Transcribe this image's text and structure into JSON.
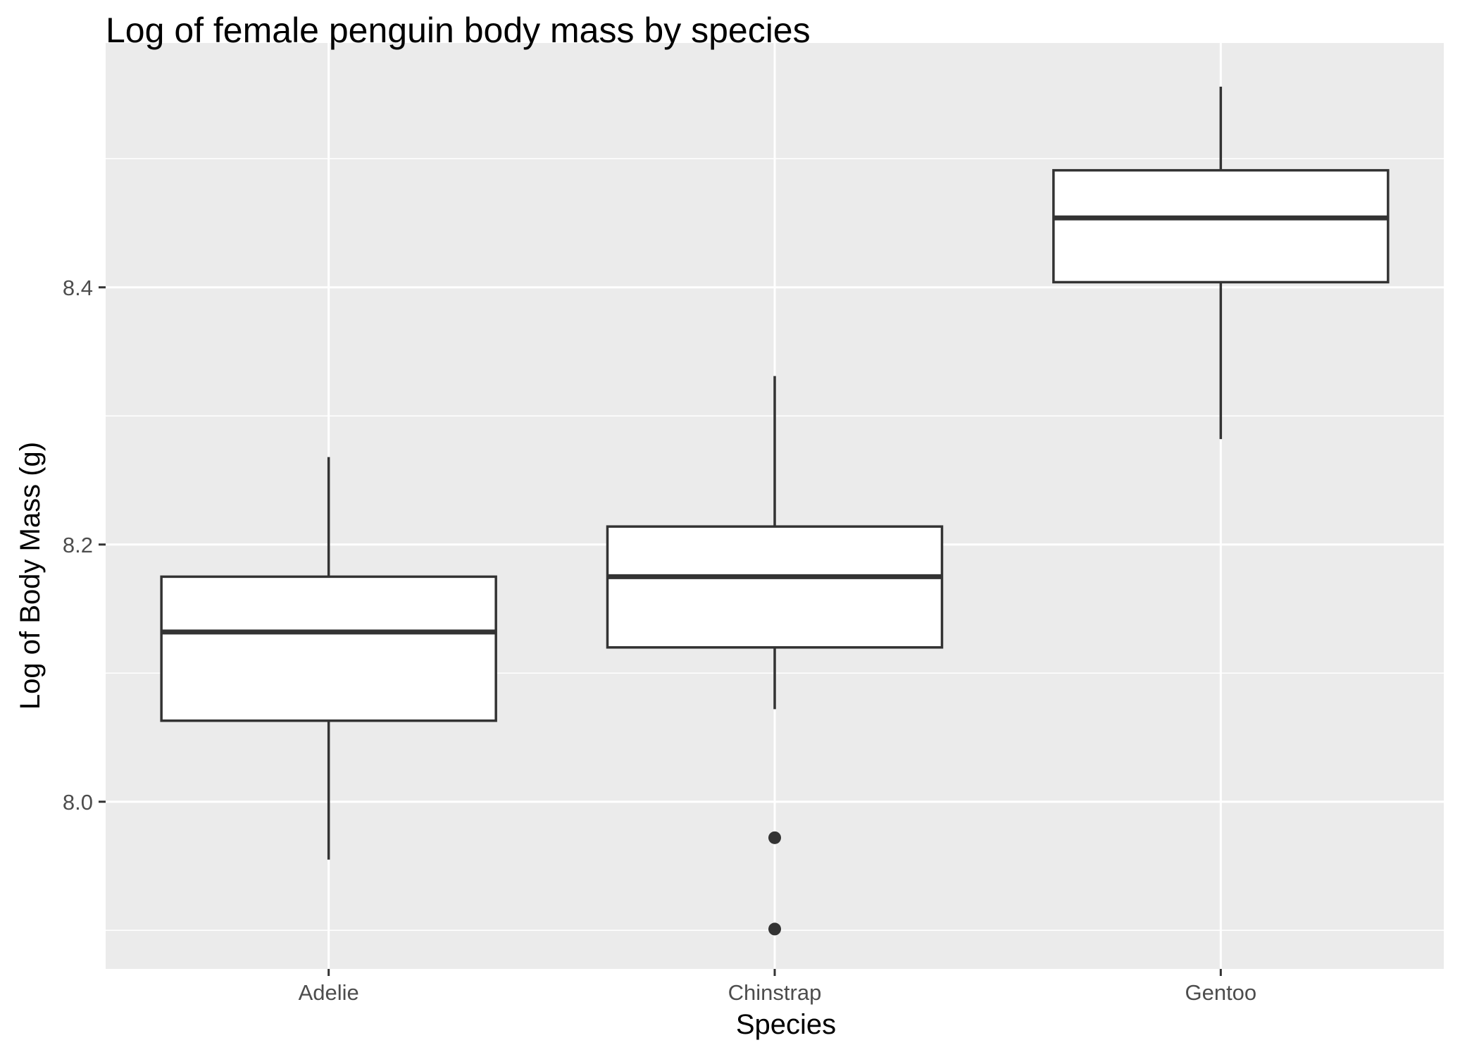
{
  "chart_data": {
    "type": "boxplot",
    "title": "Log of female penguin body mass by species",
    "xlabel": "Species",
    "ylabel": "Log of Body Mass (g)",
    "categories": [
      "Adelie",
      "Chinstrap",
      "Gentoo"
    ],
    "ylim": [
      7.87,
      8.59
    ],
    "y_ticks": [
      8.0,
      8.2,
      8.4
    ],
    "y_tick_labels": [
      "8.0",
      "8.2",
      "8.4"
    ],
    "y_minor_ticks": [
      7.9,
      8.1,
      8.3,
      8.5
    ],
    "grid": true,
    "boxes": [
      {
        "category": "Adelie",
        "whisker_low": 7.955,
        "q1": 8.063,
        "median": 8.132,
        "q3": 8.175,
        "whisker_high": 8.268,
        "outliers": []
      },
      {
        "category": "Chinstrap",
        "whisker_low": 8.072,
        "q1": 8.12,
        "median": 8.175,
        "q3": 8.214,
        "whisker_high": 8.331,
        "outliers": [
          7.972,
          7.901
        ]
      },
      {
        "category": "Gentoo",
        "whisker_low": 8.282,
        "q1": 8.404,
        "median": 8.454,
        "q3": 8.491,
        "whisker_high": 8.556,
        "outliers": []
      }
    ],
    "colors": {
      "panel": "#ebebeb",
      "grid": "#ffffff",
      "box_fill": "#ffffff",
      "box_line": "#333333",
      "tick": "#333333",
      "tick_label": "#4d4d4d"
    }
  }
}
